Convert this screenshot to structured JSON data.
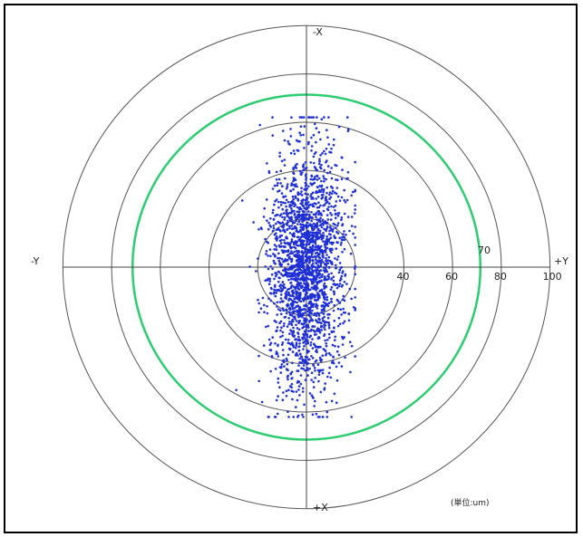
{
  "chart_data": {
    "type": "scatter",
    "coordinate_system": "polar",
    "axis_labels": {
      "top": "-X",
      "bottom": "+X",
      "left": "-Y",
      "right": "+Y"
    },
    "ring_radii": [
      20,
      40,
      60,
      80,
      100
    ],
    "ring_tick_labels": [
      "40",
      "60",
      "80",
      "100"
    ],
    "highlight_ring": {
      "radius": 70,
      "label": "70",
      "color": "#2ecc71"
    },
    "unit_label": "(単位:um)",
    "rmax": 100,
    "grid": true,
    "points_color": "#1f2fd6",
    "series": [
      {
        "distribution": "normal",
        "x_mean": 0,
        "x_std": 8,
        "y_mean": 0,
        "y_std": 25,
        "x_range": [
          -30,
          20
        ],
        "y_range": [
          -62,
          62
        ],
        "count": 2200
      }
    ]
  }
}
